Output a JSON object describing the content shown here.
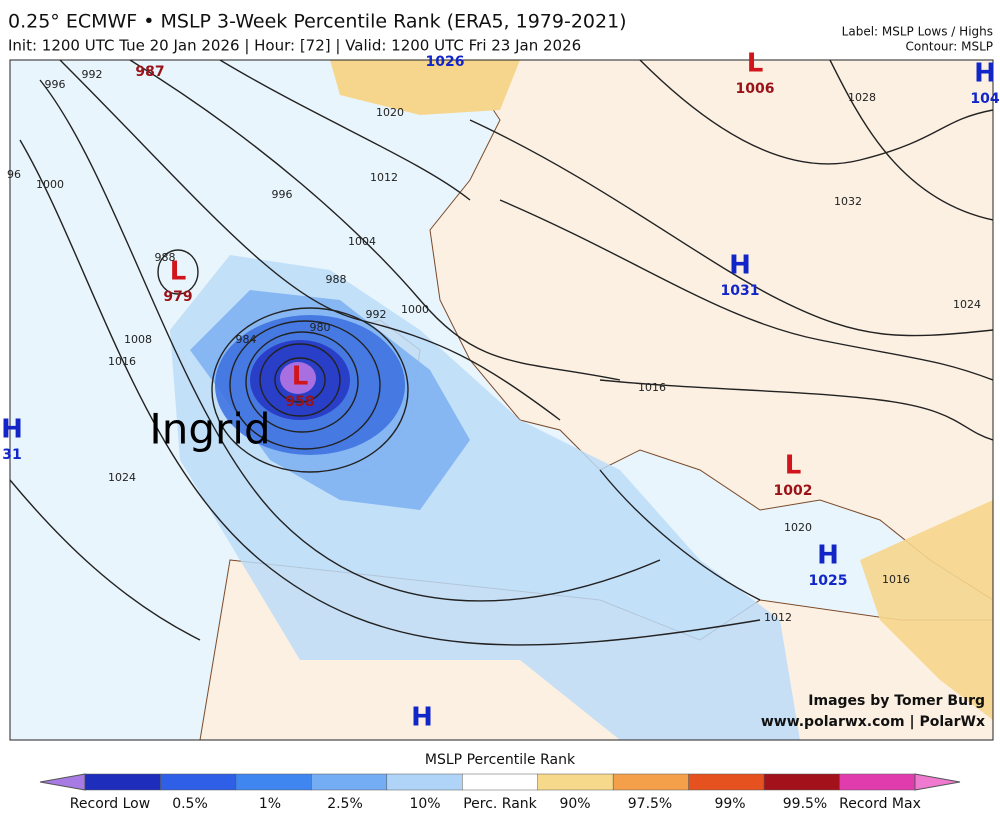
{
  "header": {
    "title": "0.25° ECMWF • MSLP 3-Week Percentile Rank (ERA5, 1979-2021)",
    "subtitle": "Init: 1200 UTC Tue 20 Jan 2026 | Hour: [72] | Valid: 1200 UTC Fri 23 Jan 2026",
    "label_info": "Label: MSLP Lows / Highs",
    "contour_info": "Contour: MSLP"
  },
  "map": {
    "storm_name": "Ingrid",
    "credit": "Images by Tomer Burg",
    "credit_url": "www.polarwx.com | PolarWx",
    "centers": [
      {
        "letter": "",
        "value": "987",
        "kind": "low"
      },
      {
        "letter": "L",
        "value": "1006",
        "kind": "low"
      },
      {
        "letter": "H",
        "value": "104",
        "kind": "high"
      },
      {
        "letter": "",
        "value": "1026",
        "kind": "high"
      },
      {
        "letter": "L",
        "value": "979",
        "kind": "low"
      },
      {
        "letter": "L",
        "value": "958",
        "kind": "low"
      },
      {
        "letter": "H",
        "value": "1031",
        "kind": "high"
      },
      {
        "letter": "H",
        "value": "31",
        "kind": "high"
      },
      {
        "letter": "L",
        "value": "1002",
        "kind": "low"
      },
      {
        "letter": "H",
        "value": "1025",
        "kind": "high"
      },
      {
        "letter": "H",
        "value": "",
        "kind": "high"
      }
    ],
    "contour_labels": [
      "996",
      "992",
      "96",
      "1000",
      "988",
      "1008",
      "1016",
      "1024",
      "1020",
      "1012",
      "1004",
      "996",
      "988",
      "984",
      "980",
      "992",
      "1000",
      "1016",
      "1028",
      "1032",
      "1024",
      "1020",
      "1016",
      "1012"
    ]
  },
  "colorbar": {
    "title": "MSLP Percentile Rank",
    "colors": [
      "#a77be3",
      "#1f2dbd",
      "#2f5fe6",
      "#3f86f0",
      "#74adf3",
      "#b0d4f8",
      "#ffffff",
      "#f6d98a",
      "#f4a04a",
      "#e6521f",
      "#a3121b",
      "#e03cae",
      "#f07ad0"
    ],
    "labels": [
      "Record Low",
      "0.5%",
      "1%",
      "2.5%",
      "10%",
      "Perc. Rank",
      "90%",
      "97.5%",
      "99%",
      "99.5%",
      "Record Max"
    ]
  }
}
